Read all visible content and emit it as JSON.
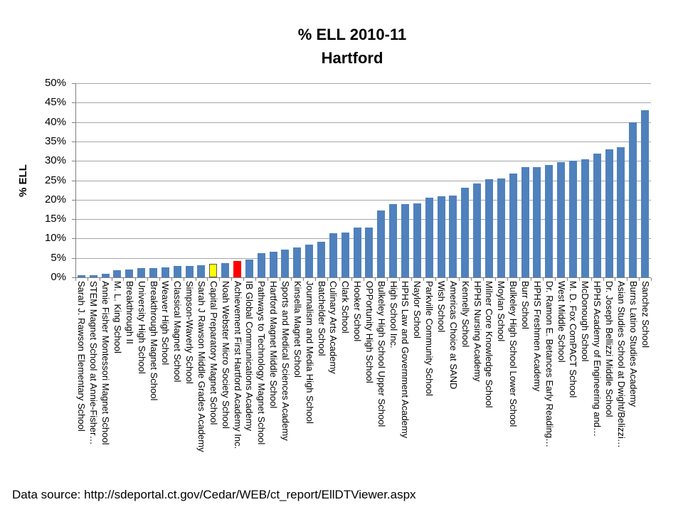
{
  "title": {
    "line1": "% ELL 2010-11",
    "line2": "Hartford"
  },
  "y_axis": {
    "label": "% ELL"
  },
  "source": "Data source: http://sdeportal.ct.gov/Cedar/WEB/ct_report/EllDTViewer.aspx",
  "colors": {
    "bar_blue": "#4F81BD",
    "highlight_yellow": "#FFFF00",
    "highlight_yellow_border": "#595959",
    "highlight_red": "#FF0000",
    "gridline": "#A6A6A6",
    "axis": "#808080",
    "text": "#000000"
  },
  "chart_data": {
    "type": "bar",
    "title": "% ELL 2010-11 Hartford",
    "xlabel": "",
    "ylabel": "% ELL",
    "ylim": [
      0,
      50
    ],
    "ytick_step": 5,
    "ytick_labels": [
      "0%",
      "5%",
      "10%",
      "15%",
      "20%",
      "25%",
      "30%",
      "35%",
      "40%",
      "45%",
      "50%"
    ],
    "grid": true,
    "legend": false,
    "categories": [
      "Sarah J. Rawson Elementary School",
      "STEM Magnet School at Annie-Fisher…",
      "Annie Fisher Montessori Magnet School",
      "M. L. King School",
      "Breakthrough II",
      "University High School",
      "Breakthrough Magnet School",
      "Weaver High School",
      "Classical Magnet School",
      "Simpson-Waverly School",
      "Sarah J Rawson Middle Grades Academy",
      "Capital Preparatory Magnet School",
      "Noah Webster Micro Society School",
      "Achievement First Hartford Academy Inc.",
      "IB Global Communications Academy",
      "Pathways to Technology Magnet School",
      "Hartford Magnet Middle School",
      "Sports and Medical Sciences Academy",
      "Kinsella Magnet School",
      "Journalism and Media High School",
      "Batchelder School",
      "Culinary Arts Academy",
      "Clark School",
      "Hooker School",
      "OPPortunity High School",
      "Bulkeley High School Upper School",
      "High School Inc.",
      "HPHS Law and Government Academy",
      "Naylor School",
      "Parkville Community School",
      "Wish School",
      "Americas Choice at SAND",
      "Kennelly School",
      "HPHS Nursing Academy",
      "Milner Core Knowledge School",
      "Moylan School",
      "Bulkeley High School Lower School",
      "Burr School",
      "HPHS Freshmen Academy",
      "Dr. Ramon E. Betances Early Reading…",
      "West Middle School",
      "M. D. Fox ComPACT School",
      "McDonough School",
      "HPHS Academy of Engineering and…",
      "Dr. Joseph Bellizzi Middle School",
      "Asian Studies School at Dwight/Belizzi…",
      "Burns Latino Studies Academy",
      "Sanchez School"
    ],
    "values": [
      0.5,
      0.5,
      1.0,
      1.8,
      2.1,
      2.4,
      2.4,
      2.5,
      2.9,
      2.9,
      3.1,
      3.4,
      3.6,
      4.3,
      4.5,
      6.3,
      6.6,
      7.1,
      7.7,
      8.4,
      9.2,
      11.3,
      11.6,
      12.9,
      12.9,
      17.2,
      18.8,
      18.9,
      19.1,
      20.6,
      20.9,
      21.1,
      23.1,
      24.2,
      25.2,
      25.5,
      26.7,
      28.3,
      28.4,
      29.0,
      29.6,
      30.1,
      30.4,
      31.9,
      33.0,
      33.6,
      40.0,
      43.1
    ],
    "highlights": [
      {
        "index": 11,
        "color": "#FFFF00",
        "category": "Capital Preparatory Magnet School"
      },
      {
        "index": 13,
        "color": "#FF0000",
        "category": "Achievement First Hartford Academy Inc."
      }
    ]
  }
}
